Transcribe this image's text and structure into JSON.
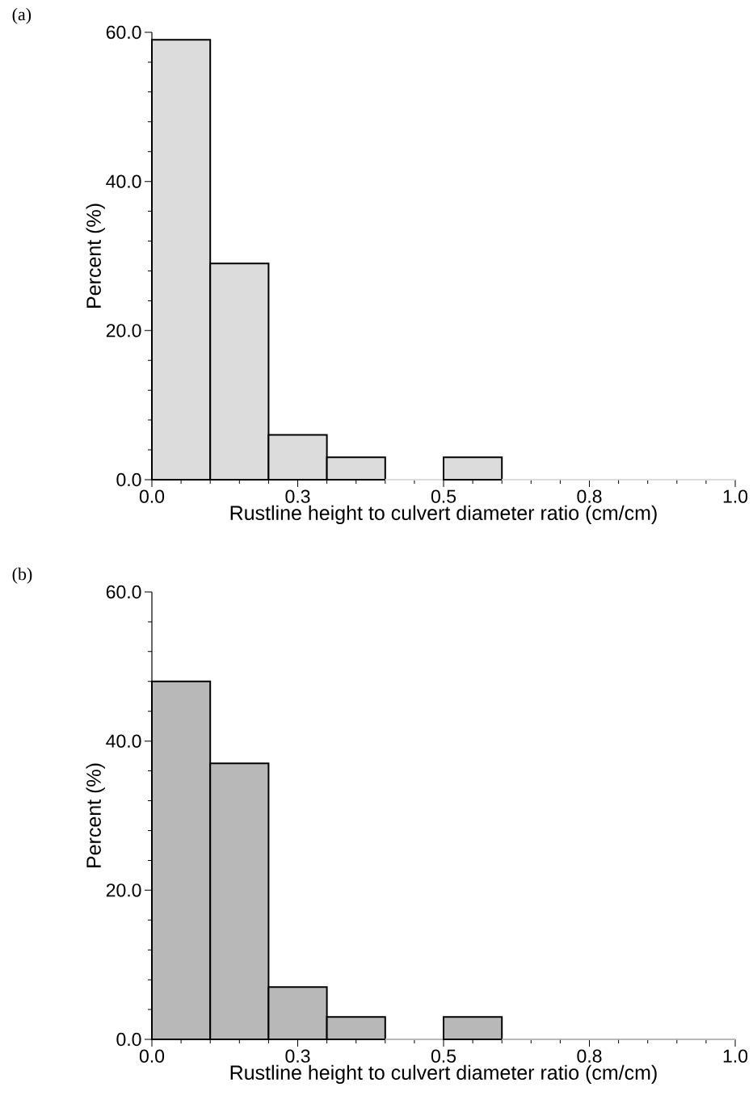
{
  "chart_data": [
    {
      "type": "histogram",
      "title": "(a)",
      "xlabel": "Rustline height to culvert diameter ratio (cm/cm)",
      "ylabel": "Percent (%)",
      "bins": [
        0,
        0.1,
        0.2,
        0.3,
        0.4,
        0.5,
        0.6,
        0.7,
        0.8,
        0.9,
        1.0
      ],
      "values": [
        59,
        29,
        6,
        3,
        0,
        3,
        0,
        0,
        0,
        0
      ],
      "color": "#dcdcdc",
      "xlim": [
        0,
        1.0
      ],
      "ylim": [
        0,
        60
      ],
      "xticks": [
        {
          "value": 0,
          "label": "0.0"
        },
        {
          "value": 0.25,
          "label": "0.3"
        },
        {
          "value": 0.5,
          "label": "0.5"
        },
        {
          "value": 0.75,
          "label": "0.8"
        },
        {
          "value": 1.0,
          "label": "1.0"
        }
      ],
      "yticks": [
        {
          "value": 0,
          "label": "0.0"
        },
        {
          "value": 20,
          "label": "20.0"
        },
        {
          "value": 40,
          "label": "40.0"
        },
        {
          "value": 60,
          "label": "60.0"
        }
      ]
    },
    {
      "type": "histogram",
      "title": "(b)",
      "xlabel": "Rustline height to culvert diameter ratio (cm/cm)",
      "ylabel": "Percent (%)",
      "bins": [
        0,
        0.1,
        0.2,
        0.3,
        0.4,
        0.5,
        0.6,
        0.7,
        0.8,
        0.9,
        1.0
      ],
      "values": [
        48,
        37,
        7,
        3,
        0,
        3,
        0,
        0,
        0,
        0
      ],
      "color": "#b8b8b8",
      "xlim": [
        0,
        1.0
      ],
      "ylim": [
        0,
        60
      ],
      "xticks": [
        {
          "value": 0,
          "label": "0.0"
        },
        {
          "value": 0.25,
          "label": "0.3"
        },
        {
          "value": 0.5,
          "label": "0.5"
        },
        {
          "value": 0.75,
          "label": "0.8"
        },
        {
          "value": 1.0,
          "label": "1.0"
        }
      ],
      "yticks": [
        {
          "value": 0,
          "label": "0.0"
        },
        {
          "value": 20,
          "label": "20.0"
        },
        {
          "value": 40,
          "label": "40.0"
        },
        {
          "value": 60,
          "label": "60.0"
        }
      ]
    }
  ]
}
